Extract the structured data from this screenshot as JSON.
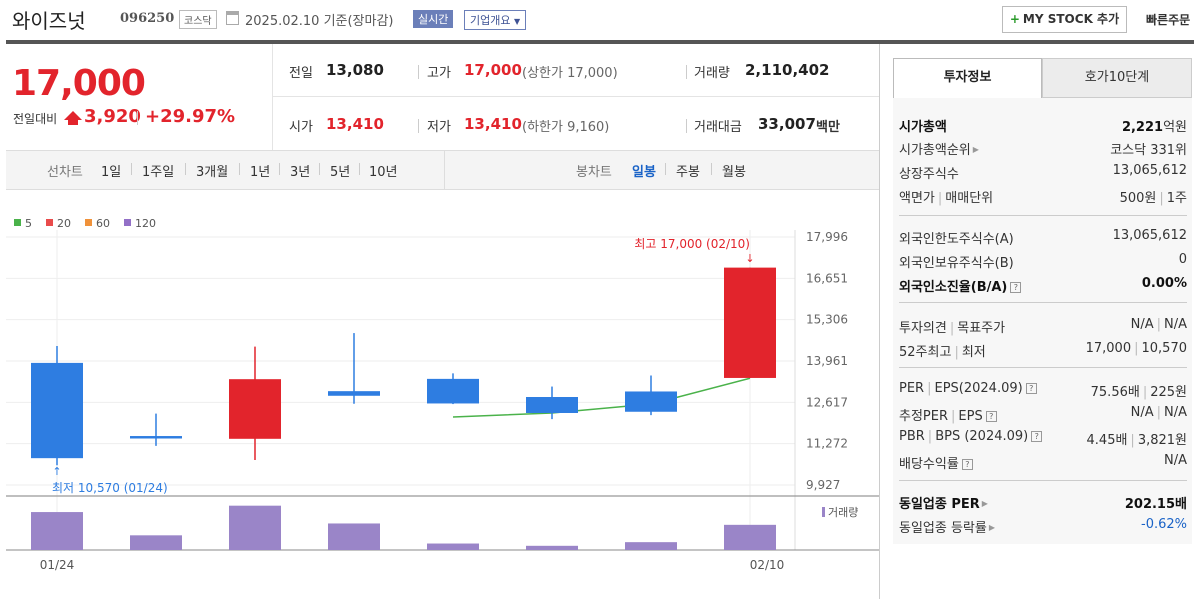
{
  "header": {
    "name": "와이즈넛",
    "code": "096250",
    "market": "코스닥",
    "date": "2025.02.10  기준(장마감)",
    "realtime": "실시간",
    "company_info": "기업개요",
    "mystock": "MY STOCK 추가",
    "quick_order": "빠른주문"
  },
  "price": {
    "current": "17,000",
    "change_label": "전일대비",
    "change": "3,920",
    "percent": "+29.97%"
  },
  "stats": {
    "prev_label": "전일",
    "prev": "13,080",
    "high_label": "고가",
    "high": "17,000",
    "upper_limit": "(상한가 17,000)",
    "volume_label": "거래량",
    "volume": "2,110,402",
    "open_label": "시가",
    "open": "13,410",
    "low_label": "저가",
    "low": "13,410",
    "lower_limit": "(하한가 9,160)",
    "amount_label": "거래대금",
    "amount": "33,007",
    "amount_unit": "백만"
  },
  "periods": {
    "line_label": "선차트",
    "line": [
      "1일",
      "1주일",
      "3개월",
      "1년",
      "3년",
      "5년",
      "10년"
    ],
    "candle_label": "봉차트",
    "candle": [
      "일봉",
      "주봉",
      "월봉"
    ],
    "candle_selected": 0
  },
  "colors": {
    "up": "#e2242c",
    "down": "#2e7de1",
    "ma5": "#4ab24a",
    "ma20": "#e94b4b",
    "ma60": "#f0923a",
    "ma120": "#9370c7",
    "volume": "#9a85c8"
  },
  "legend": [
    "5",
    "20",
    "60",
    "120"
  ],
  "annotations": {
    "high": "최고 17,000 (02/10)",
    "low": "최저 10,570 (01/24)"
  },
  "volume_label": "거래량",
  "chart_data": {
    "type": "candlestick",
    "y_ticks": [
      "17,996",
      "16,651",
      "15,306",
      "13,961",
      "12,617",
      "11,272",
      "9,927"
    ],
    "ylim": [
      9927,
      17996
    ],
    "x_ticks": [
      "01/24",
      "02/10"
    ],
    "candles": [
      {
        "open": 13900,
        "close": 10800,
        "high": 14450,
        "low": 10570
      },
      {
        "open": 11520,
        "close": 11440,
        "high": 12250,
        "low": 11200
      },
      {
        "open": 11430,
        "close": 13370,
        "high": 14430,
        "low": 10740
      },
      {
        "open": 12980,
        "close": 12830,
        "high": 14870,
        "low": 12570
      },
      {
        "open": 13380,
        "close": 12580,
        "high": 13560,
        "low": 12560
      },
      {
        "open": 12790,
        "close": 12270,
        "high": 13130,
        "low": 12070
      },
      {
        "open": 12970,
        "close": 12310,
        "high": 13490,
        "low": 12200
      },
      {
        "open": 13410,
        "close": 17000,
        "high": 17000,
        "low": 13410
      }
    ],
    "ma5": [
      null,
      null,
      null,
      null,
      12140,
      12270,
      12560,
      13400
    ],
    "volume": [
      0.81,
      0.3,
      0.95,
      0.56,
      0.12,
      0.07,
      0.15,
      0.53
    ]
  },
  "invest": {
    "tab_active": "투자정보",
    "tab_other": "호가10단계",
    "rows1": [
      {
        "label": "시가총액",
        "value_num": "2,221",
        "value_unit": "억원"
      },
      {
        "label": "시가총액순위",
        "value": "코스닥 331위"
      },
      {
        "label": "상장주식수",
        "value": "13,065,612"
      },
      {
        "label": "액면가",
        "label2": "매매단위",
        "value": "500원",
        "value2": "1주"
      }
    ],
    "rows2": [
      {
        "label": "외국인한도주식수(A)",
        "value": "13,065,612"
      },
      {
        "label": "외국인보유주식수(B)",
        "value": "0"
      },
      {
        "label": "외국인소진율(B/A)",
        "value": "0.00%"
      }
    ],
    "rows3": [
      {
        "label": "투자의견",
        "label2": "목표주가",
        "value": "N/A",
        "value2": "N/A"
      },
      {
        "label": "52주최고",
        "label2": "최저",
        "value": "17,000",
        "value2": "10,570"
      }
    ],
    "rows4": [
      {
        "label": "PER",
        "label2": "EPS(2024.09)",
        "value": "75.56배",
        "value2": "225원"
      },
      {
        "label": "추정PER",
        "label2": "EPS",
        "value": "N/A",
        "value2": "N/A"
      },
      {
        "label": "PBR",
        "label2": "BPS (2024.09)",
        "value": "4.45배",
        "value2": "3,821원"
      },
      {
        "label": "배당수익률",
        "value": "N/A"
      }
    ],
    "rows5": [
      {
        "label": "동일업종 PER",
        "value": "202.15배"
      },
      {
        "label": "동일업종 등락률",
        "value": "-0.62%"
      }
    ]
  }
}
